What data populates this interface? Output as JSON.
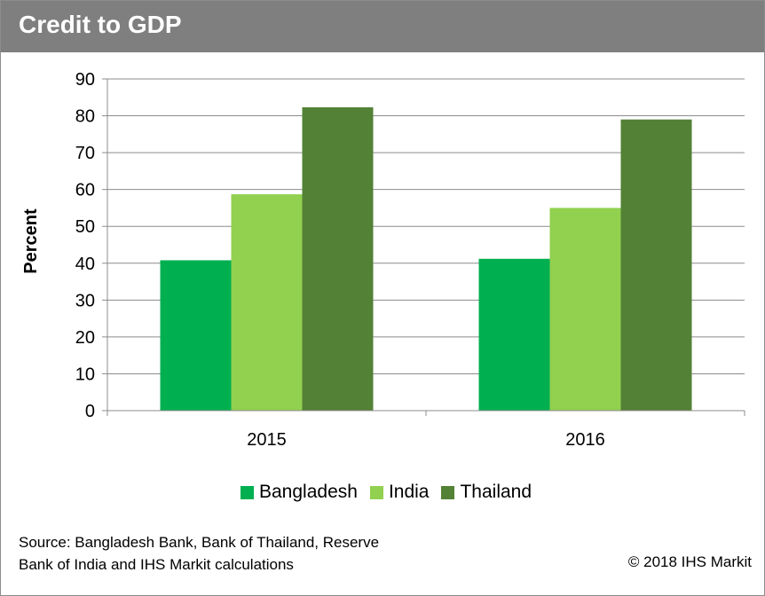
{
  "header": {
    "title": "Credit to GDP"
  },
  "chart_data": {
    "type": "bar",
    "title": "Credit to GDP",
    "xlabel": "",
    "ylabel": "Percent",
    "categories": [
      "2015",
      "2016"
    ],
    "series": [
      {
        "name": "Bangladesh",
        "values": [
          40.8,
          41.2
        ],
        "color": "#00b050"
      },
      {
        "name": "India",
        "values": [
          58.7,
          55.0
        ],
        "color": "#92d050"
      },
      {
        "name": "Thailand",
        "values": [
          82.3,
          79.0
        ],
        "color": "#538135"
      }
    ],
    "ylim": [
      0,
      90
    ],
    "yticks": [
      0,
      10,
      20,
      30,
      40,
      50,
      60,
      70,
      80,
      90
    ],
    "grid": true,
    "legend_position": "bottom"
  },
  "footer": {
    "source_line1": "Source: Bangladesh Bank, Bank of Thailand, Reserve",
    "source_line2": "Bank of India and IHS Markit calculations",
    "copyright": "© 2018 IHS Markit"
  }
}
